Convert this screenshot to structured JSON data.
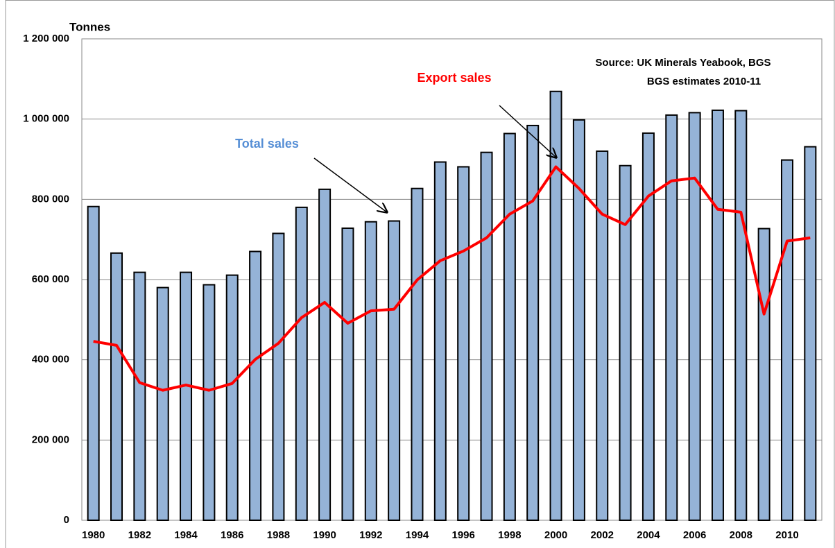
{
  "chart_data": {
    "type": "bar-line",
    "y_label": "Tonnes",
    "annotations": [
      "Source: UK Minerals Yeabook, BGS",
      "BGS estimates 2010-11",
      "Export sales",
      "Total sales"
    ],
    "categories": [
      "1980",
      null,
      "1982",
      null,
      "1984",
      null,
      "1986",
      null,
      "1988",
      null,
      "1990",
      null,
      "1992",
      null,
      "1994",
      null,
      "1996",
      null,
      "1998",
      null,
      "2000",
      null,
      "2002",
      null,
      "2004",
      null,
      "2006",
      null,
      "2008",
      null,
      "2010",
      null
    ],
    "series": [
      {
        "name": "Total sales",
        "type": "bar",
        "color": "#95b3d7",
        "values": [
          782000,
          666000,
          618000,
          580000,
          618000,
          587000,
          611000,
          670000,
          715000,
          780000,
          825000,
          728000,
          744000,
          746000,
          827000,
          893000,
          881000,
          917000,
          964000,
          984000,
          1069000,
          998000,
          920000,
          884000,
          965000,
          1010000,
          1016000,
          1022000,
          1021000,
          727000,
          898000,
          931000
        ]
      },
      {
        "name": "Export sales",
        "type": "line",
        "color": "#ff0000",
        "values": [
          446000,
          436000,
          343000,
          324000,
          337000,
          324000,
          341000,
          401000,
          441000,
          505000,
          543000,
          491000,
          522000,
          526000,
          599000,
          647000,
          671000,
          704000,
          763000,
          796000,
          881000,
          827000,
          763000,
          737000,
          808000,
          846000,
          853000,
          775000,
          768000,
          514000,
          696000,
          704000
        ]
      }
    ],
    "ylim": [
      0,
      1200000
    ],
    "yticks": [
      0,
      {
        "value": 200000,
        "label": "200 000"
      },
      {
        "value": 400000,
        "label": "400 000"
      },
      {
        "value": 600000,
        "label": "600 000"
      },
      {
        "value": 800000,
        "label": "800 000"
      },
      {
        "value": 1000000,
        "label": "1 000 000"
      },
      {
        "value": 1200000,
        "label": "1 200 000"
      }
    ],
    "grid": true
  }
}
